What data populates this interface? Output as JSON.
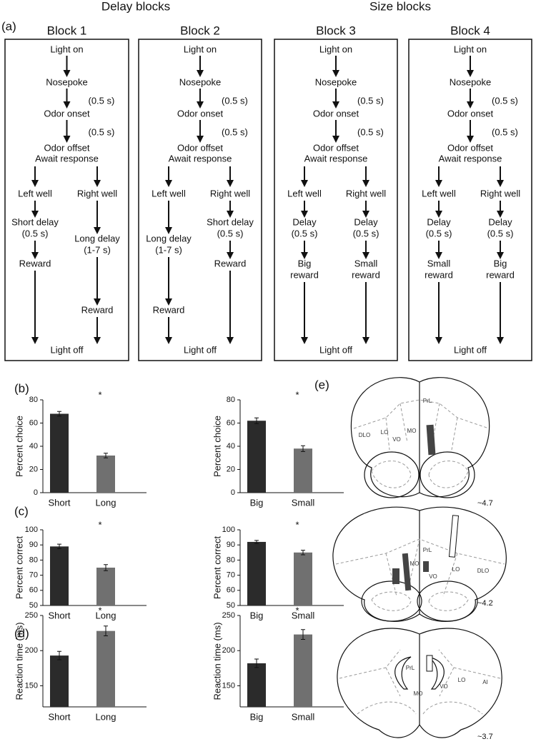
{
  "headers": [
    "Delay blocks",
    "Size blocks"
  ],
  "panel_labels": [
    "(a)",
    "(b)",
    "(c)",
    "(d)",
    "(e)"
  ],
  "blocks": [
    {
      "title": "Block 1",
      "steps": [
        "Light on",
        "Nosepoke",
        "(0.5 s)",
        "Odor onset",
        "(0.5 s)",
        "Odor offset",
        "Await response"
      ],
      "left": [
        [
          "Left well"
        ],
        [
          "Short delay",
          "(0.5 s)"
        ],
        [
          "Reward"
        ]
      ],
      "right": [
        [
          "Right well"
        ],
        [
          "Long delay",
          "(1-7 s)"
        ],
        [
          "Reward"
        ]
      ],
      "end": "Light off"
    },
    {
      "title": "Block 2",
      "steps": [
        "Light on",
        "Nosepoke",
        "(0.5 s)",
        "Odor onset",
        "(0.5 s)",
        "Odor offset",
        "Await response"
      ],
      "left": [
        [
          "Left well"
        ],
        [
          "Long delay",
          "(1-7 s)"
        ],
        [
          "Reward"
        ]
      ],
      "right": [
        [
          "Right well"
        ],
        [
          "Short delay",
          "(0.5 s)"
        ],
        [
          "Reward"
        ]
      ],
      "end": "Light off"
    },
    {
      "title": "Block 3",
      "steps": [
        "Light on",
        "Nosepoke",
        "(0.5 s)",
        "Odor onset",
        "(0.5 s)",
        "Odor offset",
        "Await response"
      ],
      "left": [
        [
          "Left well"
        ],
        [
          "Delay",
          "(0.5 s)"
        ],
        [
          "Big",
          "reward"
        ]
      ],
      "right": [
        [
          "Right well"
        ],
        [
          "Delay",
          "(0.5 s)"
        ],
        [
          "Small",
          "reward"
        ]
      ],
      "end": "Light off"
    },
    {
      "title": "Block 4",
      "steps": [
        "Light on",
        "Nosepoke",
        "(0.5 s)",
        "Odor onset",
        "(0.5 s)",
        "Odor offset",
        "Await response"
      ],
      "left": [
        [
          "Left well"
        ],
        [
          "Delay",
          "(0.5 s)"
        ],
        [
          "Small",
          "reward"
        ]
      ],
      "right": [
        [
          "Right well"
        ],
        [
          "Delay",
          "(0.5 s)"
        ],
        [
          "Big",
          "reward"
        ]
      ],
      "end": "Light off"
    }
  ],
  "chart_data": [
    {
      "type": "bar",
      "ylabel": "Percent choice",
      "annotation": "*",
      "categories": [
        "Short",
        "Long"
      ],
      "values": [
        68,
        32
      ],
      "errors": [
        2,
        2
      ],
      "colors": [
        "#2b2b2b",
        "#707070"
      ],
      "ylim": [
        0,
        80
      ],
      "yticks": [
        0,
        20,
        40,
        60,
        80
      ]
    },
    {
      "type": "bar",
      "ylabel": "Percent choice",
      "annotation": "*",
      "categories": [
        "Big",
        "Small"
      ],
      "values": [
        62,
        38
      ],
      "errors": [
        2.5,
        2.5
      ],
      "colors": [
        "#2b2b2b",
        "#707070"
      ],
      "ylim": [
        0,
        80
      ],
      "yticks": [
        0,
        20,
        40,
        60,
        80
      ]
    },
    {
      "type": "bar",
      "ylabel": "Percent correct",
      "annotation": "*",
      "categories": [
        "Short",
        "Long"
      ],
      "values": [
        89,
        75
      ],
      "errors": [
        1.5,
        2
      ],
      "colors": [
        "#2b2b2b",
        "#707070"
      ],
      "ylim": [
        50,
        100
      ],
      "yticks": [
        50,
        60,
        70,
        80,
        90,
        100
      ]
    },
    {
      "type": "bar",
      "ylabel": "Percent correct",
      "annotation": "*",
      "categories": [
        "Big",
        "Small"
      ],
      "values": [
        92,
        85
      ],
      "errors": [
        1,
        1.5
      ],
      "colors": [
        "#2b2b2b",
        "#707070"
      ],
      "ylim": [
        50,
        100
      ],
      "yticks": [
        50,
        60,
        70,
        80,
        90,
        100
      ]
    },
    {
      "type": "bar",
      "ylabel": "Reaction time (ms)",
      "annotation": "*",
      "categories": [
        "Short",
        "Long"
      ],
      "values": [
        193,
        228
      ],
      "errors": [
        6,
        7
      ],
      "colors": [
        "#2b2b2b",
        "#707070"
      ],
      "ylim": [
        120,
        250
      ],
      "yticks": [
        150,
        200,
        250
      ]
    },
    {
      "type": "bar",
      "ylabel": "Reaction time (ms)",
      "annotation": "*",
      "categories": [
        "Big",
        "Small"
      ],
      "values": [
        182,
        223
      ],
      "errors": [
        6,
        7
      ],
      "colors": [
        "#2b2b2b",
        "#707070"
      ],
      "ylim": [
        120,
        250
      ],
      "yticks": [
        150,
        200,
        250
      ]
    }
  ],
  "brain_sections": [
    {
      "labels": [
        "PrL",
        "DLO",
        "LO",
        "MO",
        "VO"
      ],
      "level": "~4.7"
    },
    {
      "labels": [
        "PrL",
        "MO",
        "LO",
        "DLO",
        "VO"
      ],
      "level": "~4.2"
    },
    {
      "labels": [
        "PrL",
        "LO",
        "AI",
        "VO",
        "MO"
      ],
      "level": "~3.7"
    }
  ]
}
